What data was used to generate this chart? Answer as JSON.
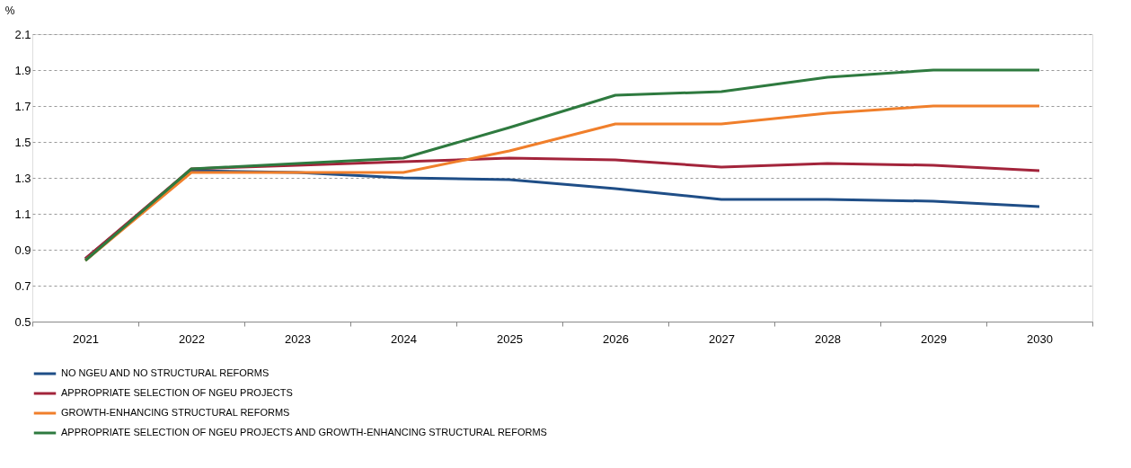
{
  "chart_data": {
    "type": "line",
    "ylabel": "%",
    "categories": [
      "2021",
      "2022",
      "2023",
      "2024",
      "2025",
      "2026",
      "2027",
      "2028",
      "2029",
      "2030"
    ],
    "ylim": [
      0.5,
      2.1
    ],
    "yticks": [
      {
        "value": 0.5,
        "label": "0.5"
      },
      {
        "value": 0.7,
        "label": "0.7"
      },
      {
        "value": 0.9,
        "label": "0.9"
      },
      {
        "value": 1.1,
        "label": "1.1"
      },
      {
        "value": 1.3,
        "label": "1.3"
      },
      {
        "value": 1.5,
        "label": "1.5"
      },
      {
        "value": 1.7,
        "label": "1.7"
      },
      {
        "value": 1.9,
        "label": "1.9"
      },
      {
        "value": 2.1,
        "label": "2.1"
      }
    ],
    "grid": "y",
    "legend": "bottom",
    "marker": "none",
    "line_style": "solid",
    "series": [
      {
        "name": "NO NGEU AND NO STRUCTURAL REFORMS",
        "color": "#1f4e87",
        "values": [
          0.85,
          1.34,
          1.33,
          1.3,
          1.29,
          1.24,
          1.18,
          1.18,
          1.17,
          1.14
        ]
      },
      {
        "name": "APPROPRIATE SELECTION OF NGEU PROJECTS",
        "color": "#a3243b",
        "values": [
          0.85,
          1.35,
          1.37,
          1.39,
          1.41,
          1.4,
          1.36,
          1.38,
          1.37,
          1.34
        ]
      },
      {
        "name": "GROWTH-ENHANCING STRUCTURAL REFORMS",
        "color": "#f07f2b",
        "values": [
          0.84,
          1.33,
          1.33,
          1.33,
          1.45,
          1.6,
          1.6,
          1.66,
          1.7,
          1.7
        ]
      },
      {
        "name": "APPROPRIATE SELECTION OF NGEU PROJECTS AND GROWTH-ENHANCING STRUCTURAL REFORMS",
        "color": "#2e7a3f",
        "values": [
          0.84,
          1.35,
          1.38,
          1.41,
          1.58,
          1.76,
          1.78,
          1.86,
          1.9,
          1.9
        ]
      }
    ]
  }
}
